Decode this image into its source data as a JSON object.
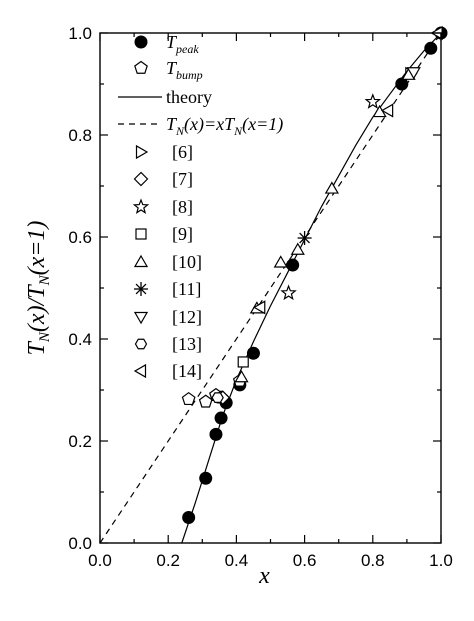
{
  "chart_data": {
    "type": "scatter",
    "title": "",
    "xlabel": "x",
    "ylabel_parts": [
      "T",
      "N",
      "(x)/T",
      "N",
      "(x=1)"
    ],
    "xlim": [
      0.0,
      1.0
    ],
    "ylim": [
      0.0,
      1.0
    ],
    "xticks": [
      "0.0",
      "0.2",
      "0.4",
      "0.6",
      "0.8",
      "1.0"
    ],
    "yticks": [
      "0.0",
      "0.2",
      "0.4",
      "0.6",
      "0.8",
      "1.0"
    ],
    "grid": false,
    "legend_position": "upper-left",
    "legend": [
      {
        "symbol": "filled-circle",
        "label": "T",
        "sub": "peak"
      },
      {
        "symbol": "open-pentagon",
        "label": "T",
        "sub": "bump"
      },
      {
        "symbol": "solid-line",
        "label": "theory"
      },
      {
        "symbol": "dashed-line",
        "label_parts": [
          "T",
          "N",
          "(x)=xT",
          "N",
          "(x=1)"
        ]
      },
      {
        "symbol": "triangle-right",
        "label": "[6]"
      },
      {
        "symbol": "diamond",
        "label": "[7]"
      },
      {
        "symbol": "star",
        "label": "[8]"
      },
      {
        "symbol": "square",
        "label": "[9]"
      },
      {
        "symbol": "triangle-up",
        "label": "[10]"
      },
      {
        "symbol": "asterisk",
        "label": "[11]"
      },
      {
        "symbol": "triangle-down",
        "label": "[12]"
      },
      {
        "symbol": "hexagon",
        "label": "[13]"
      },
      {
        "symbol": "triangle-left",
        "label": "[14]"
      }
    ],
    "series": [
      {
        "name": "T_peak",
        "symbol": "filled-circle",
        "points": [
          [
            0.26,
            0.05
          ],
          [
            0.31,
            0.127
          ],
          [
            0.34,
            0.213
          ],
          [
            0.355,
            0.245
          ],
          [
            0.37,
            0.275
          ],
          [
            0.41,
            0.31
          ],
          [
            0.45,
            0.372
          ],
          [
            0.565,
            0.545
          ],
          [
            0.885,
            0.9
          ],
          [
            0.97,
            0.97
          ],
          [
            1.0,
            1.0
          ]
        ]
      },
      {
        "name": "T_bump",
        "symbol": "open-pentagon",
        "points": [
          [
            0.26,
            0.282
          ],
          [
            0.31,
            0.277
          ],
          [
            0.34,
            0.29
          ],
          [
            0.355,
            0.285
          ],
          [
            0.41,
            0.318
          ]
        ]
      },
      {
        "name": "[6]",
        "symbol": "triangle-right",
        "points": [
          [
            0.91,
            0.92
          ]
        ]
      },
      {
        "name": "[7]",
        "symbol": "diamond",
        "points": [
          [
            0.36,
            0.285
          ]
        ]
      },
      {
        "name": "[8]",
        "symbol": "star",
        "points": [
          [
            0.553,
            0.49
          ],
          [
            0.8,
            0.865
          ]
        ]
      },
      {
        "name": "[9]",
        "symbol": "square",
        "points": [
          [
            0.42,
            0.355
          ]
        ]
      },
      {
        "name": "[10]",
        "symbol": "triangle-up",
        "points": [
          [
            0.415,
            0.325
          ],
          [
            0.46,
            0.46
          ],
          [
            0.53,
            0.55
          ],
          [
            0.58,
            0.575
          ],
          [
            0.68,
            0.695
          ],
          [
            0.82,
            0.845
          ],
          [
            0.905,
            0.918
          ]
        ]
      },
      {
        "name": "[11]",
        "symbol": "asterisk",
        "points": [
          [
            0.6,
            0.598
          ]
        ]
      },
      {
        "name": "[12]",
        "symbol": "triangle-down",
        "points": [
          [
            0.92,
            0.923
          ]
        ]
      },
      {
        "name": "[13]",
        "symbol": "hexagon",
        "points": [
          [
            0.345,
            0.285
          ]
        ]
      },
      {
        "name": "[14]",
        "symbol": "triangle-left",
        "points": [
          [
            0.47,
            0.462
          ],
          [
            0.845,
            0.848
          ],
          [
            0.99,
            1.0
          ]
        ]
      }
    ],
    "lines": [
      {
        "name": "theory",
        "style": "solid",
        "points": [
          [
            0.24,
            0.0
          ],
          [
            0.28,
            0.08
          ],
          [
            0.32,
            0.165
          ],
          [
            0.36,
            0.25
          ],
          [
            0.4,
            0.32
          ],
          [
            0.45,
            0.395
          ],
          [
            0.5,
            0.465
          ],
          [
            0.55,
            0.53
          ],
          [
            0.6,
            0.595
          ],
          [
            0.65,
            0.66
          ],
          [
            0.7,
            0.72
          ],
          [
            0.75,
            0.78
          ],
          [
            0.8,
            0.835
          ],
          [
            0.85,
            0.88
          ],
          [
            0.9,
            0.925
          ],
          [
            0.95,
            0.965
          ],
          [
            1.0,
            1.0
          ]
        ]
      },
      {
        "name": "T_N(x)=xT_N(x=1)",
        "style": "dashed",
        "points": [
          [
            0.0,
            0.0
          ],
          [
            1.0,
            1.0
          ]
        ]
      }
    ]
  }
}
